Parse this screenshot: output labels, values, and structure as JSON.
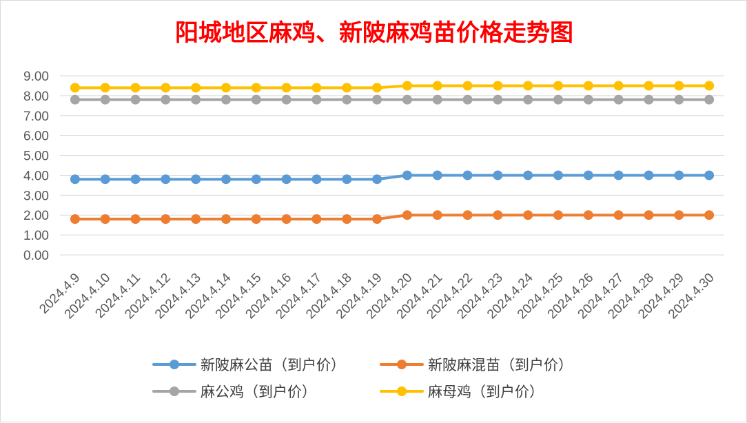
{
  "chart_data": {
    "type": "line",
    "title": "阳城地区麻鸡、新陂麻鸡苗价格走势图",
    "title_color": "#ff0000",
    "xlabel": "",
    "ylabel": "",
    "ylim": [
      0,
      9
    ],
    "y_ticks": [
      "0.00",
      "1.00",
      "2.00",
      "3.00",
      "4.00",
      "5.00",
      "6.00",
      "7.00",
      "8.00",
      "9.00"
    ],
    "grid": true,
    "legend_position": "bottom",
    "categories": [
      "2024.4.9",
      "2024.4.10",
      "2024.4.11",
      "2024.4.12",
      "2024.4.13",
      "2024.4.14",
      "2024.4.15",
      "2024.4.16",
      "2024.4.17",
      "2024.4.18",
      "2024.4.19",
      "2024.4.20",
      "2024.4.21",
      "2024.4.22",
      "2024.4.23",
      "2024.4.24",
      "2024.4.25",
      "2024.4.26",
      "2024.4.27",
      "2024.4.28",
      "2024.4.29",
      "2024.4.30"
    ],
    "series": [
      {
        "name": "新陂麻公苗（到户价）",
        "color": "#5b9bd5",
        "values": [
          3.8,
          3.8,
          3.8,
          3.8,
          3.8,
          3.8,
          3.8,
          3.8,
          3.8,
          3.8,
          3.8,
          4.0,
          4.0,
          4.0,
          4.0,
          4.0,
          4.0,
          4.0,
          4.0,
          4.0,
          4.0,
          4.0
        ]
      },
      {
        "name": "新陂麻混苗（到户价）",
        "color": "#ed7d31",
        "values": [
          1.8,
          1.8,
          1.8,
          1.8,
          1.8,
          1.8,
          1.8,
          1.8,
          1.8,
          1.8,
          1.8,
          2.0,
          2.0,
          2.0,
          2.0,
          2.0,
          2.0,
          2.0,
          2.0,
          2.0,
          2.0,
          2.0
        ]
      },
      {
        "name": "麻公鸡（到户价）",
        "color": "#a5a5a5",
        "values": [
          7.8,
          7.8,
          7.8,
          7.8,
          7.8,
          7.8,
          7.8,
          7.8,
          7.8,
          7.8,
          7.8,
          7.8,
          7.8,
          7.8,
          7.8,
          7.8,
          7.8,
          7.8,
          7.8,
          7.8,
          7.8,
          7.8
        ]
      },
      {
        "name": "麻母鸡（到户价）",
        "color": "#ffc000",
        "values": [
          8.4,
          8.4,
          8.4,
          8.4,
          8.4,
          8.4,
          8.4,
          8.4,
          8.4,
          8.4,
          8.4,
          8.5,
          8.5,
          8.5,
          8.5,
          8.5,
          8.5,
          8.5,
          8.5,
          8.5,
          8.5,
          8.5
        ]
      }
    ]
  }
}
